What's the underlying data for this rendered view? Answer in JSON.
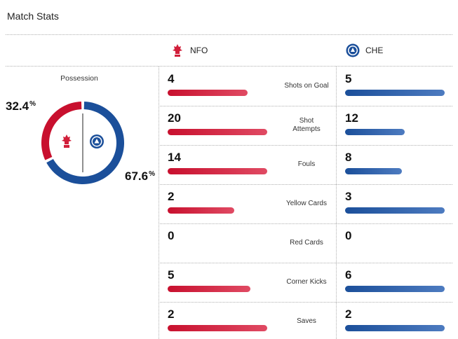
{
  "header": {
    "title": "Match Stats"
  },
  "teams": {
    "home": {
      "abbr": "NFO",
      "color": "#c8102e",
      "crest_icon": "nottingham-forest-crest"
    },
    "away": {
      "abbr": "CHE",
      "color": "#1b4f9a",
      "crest_icon": "chelsea-crest"
    }
  },
  "possession": {
    "label": "Possession",
    "home_value": "32.4",
    "away_value": "67.6",
    "unit": "%",
    "home_fraction": 0.324,
    "away_fraction": 0.676
  },
  "stats": [
    {
      "label": "Shots on Goal",
      "home": "4",
      "away": "5",
      "home_fill": 0.8,
      "away_fill": 1.0
    },
    {
      "label": "Shot Attempts",
      "home": "20",
      "away": "12",
      "home_fill": 1.0,
      "away_fill": 0.6
    },
    {
      "label": "Fouls",
      "home": "14",
      "away": "8",
      "home_fill": 1.0,
      "away_fill": 0.57
    },
    {
      "label": "Yellow Cards",
      "home": "2",
      "away": "3",
      "home_fill": 0.67,
      "away_fill": 1.0
    },
    {
      "label": "Red Cards",
      "home": "0",
      "away": "0",
      "home_fill": 0,
      "away_fill": 0
    },
    {
      "label": "Corner Kicks",
      "home": "5",
      "away": "6",
      "home_fill": 0.83,
      "away_fill": 1.0
    },
    {
      "label": "Saves",
      "home": "2",
      "away": "2",
      "home_fill": 1.0,
      "away_fill": 1.0
    }
  ]
}
